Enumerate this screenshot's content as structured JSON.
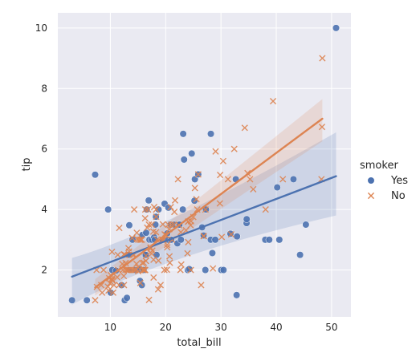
{
  "chart_data": {
    "type": "scatter",
    "xlabel": "total_bill",
    "ylabel": "tip",
    "xlim": [
      0.5,
      53.5
    ],
    "ylim": [
      0.45,
      10.5
    ],
    "xticks": [
      10,
      20,
      30,
      40,
      50
    ],
    "yticks": [
      2,
      4,
      6,
      8,
      10
    ],
    "grid": true,
    "legend": {
      "title": "smoker",
      "placement": "right",
      "entries": [
        {
          "label": "Yes",
          "marker": "circle"
        },
        {
          "label": "No",
          "marker": "x"
        }
      ]
    },
    "series": [
      {
        "name": "Yes",
        "marker": "circle",
        "color": "#4c72b0",
        "points": [
          [
            3.07,
            1.0
          ],
          [
            5.75,
            1.0
          ],
          [
            7.25,
            5.15
          ],
          [
            9.6,
            4.0
          ],
          [
            10.07,
            1.25
          ],
          [
            10.34,
            2.0
          ],
          [
            11.02,
            1.98
          ],
          [
            12.03,
            1.5
          ],
          [
            12.6,
            1.0
          ],
          [
            13.0,
            1.08
          ],
          [
            13.27,
            2.5
          ],
          [
            13.42,
            3.48
          ],
          [
            13.51,
            2.0
          ],
          [
            14.0,
            3.0
          ],
          [
            14.5,
            2.0
          ],
          [
            15.36,
            1.64
          ],
          [
            15.48,
            2.02
          ],
          [
            15.69,
            1.5
          ],
          [
            15.81,
            3.16
          ],
          [
            16.0,
            2.0
          ],
          [
            16.27,
            2.5
          ],
          [
            16.4,
            2.5
          ],
          [
            16.47,
            3.23
          ],
          [
            16.58,
            4.0
          ],
          [
            16.93,
            4.3
          ],
          [
            17.07,
            3.0
          ],
          [
            17.51,
            3.0
          ],
          [
            17.92,
            3.08
          ],
          [
            18.04,
            3.0
          ],
          [
            18.15,
            3.5
          ],
          [
            18.24,
            3.76
          ],
          [
            18.35,
            2.5
          ],
          [
            18.71,
            4.0
          ],
          [
            19.44,
            3.0
          ],
          [
            19.81,
            4.19
          ],
          [
            20.29,
            3.21
          ],
          [
            20.45,
            3.0
          ],
          [
            20.49,
            4.06
          ],
          [
            20.9,
            3.5
          ],
          [
            21.01,
            3.0
          ],
          [
            21.5,
            3.5
          ],
          [
            22.12,
            2.88
          ],
          [
            22.42,
            3.48
          ],
          [
            22.49,
            3.5
          ],
          [
            22.76,
            3.0
          ],
          [
            23.1,
            4.0
          ],
          [
            23.33,
            5.65
          ],
          [
            23.17,
            6.5
          ],
          [
            24.01,
            2.0
          ],
          [
            24.27,
            2.03
          ],
          [
            24.71,
            5.85
          ],
          [
            25.21,
            4.29
          ],
          [
            25.28,
            5.0
          ],
          [
            25.89,
            5.16
          ],
          [
            26.59,
            3.41
          ],
          [
            26.86,
            3.14
          ],
          [
            27.18,
            2.0
          ],
          [
            27.28,
            4.0
          ],
          [
            28.15,
            3.0
          ],
          [
            28.17,
            6.5
          ],
          [
            28.44,
            2.56
          ],
          [
            28.97,
            3.0
          ],
          [
            30.06,
            2.0
          ],
          [
            30.46,
            2.0
          ],
          [
            31.71,
            3.2
          ],
          [
            32.68,
            5.0
          ],
          [
            32.83,
            1.17
          ],
          [
            32.9,
            3.11
          ],
          [
            34.63,
            3.55
          ],
          [
            34.65,
            3.68
          ],
          [
            38.01,
            3.0
          ],
          [
            38.73,
            3.0
          ],
          [
            40.17,
            4.73
          ],
          [
            40.55,
            3.0
          ],
          [
            43.11,
            5.0
          ],
          [
            44.3,
            2.5
          ],
          [
            45.35,
            3.5
          ],
          [
            50.81,
            10.0
          ]
        ]
      },
      {
        "name": "No",
        "marker": "x",
        "color": "#dd8452",
        "points": [
          [
            7.25,
            1.0
          ],
          [
            7.51,
            2.0
          ],
          [
            7.56,
            1.44
          ],
          [
            8.35,
            1.5
          ],
          [
            8.51,
            1.25
          ],
          [
            8.77,
            2.0
          ],
          [
            9.55,
            1.45
          ],
          [
            9.68,
            1.32
          ],
          [
            9.78,
            1.73
          ],
          [
            9.94,
            1.56
          ],
          [
            10.07,
            1.83
          ],
          [
            10.27,
            1.71
          ],
          [
            10.29,
            2.6
          ],
          [
            10.33,
            1.67
          ],
          [
            10.34,
            1.66
          ],
          [
            10.51,
            1.25
          ],
          [
            10.65,
            1.5
          ],
          [
            11.24,
            1.76
          ],
          [
            11.35,
            2.5
          ],
          [
            11.38,
            2.0
          ],
          [
            11.59,
            1.5
          ],
          [
            11.61,
            3.39
          ],
          [
            12.16,
            2.2
          ],
          [
            12.26,
            2.0
          ],
          [
            12.43,
            1.8
          ],
          [
            12.46,
            1.5
          ],
          [
            12.48,
            2.52
          ],
          [
            12.54,
            2.5
          ],
          [
            12.66,
            2.5
          ],
          [
            12.74,
            2.01
          ],
          [
            12.76,
            2.23
          ],
          [
            13.03,
            2.0
          ],
          [
            13.13,
            2.0
          ],
          [
            13.28,
            2.72
          ],
          [
            13.37,
            2.0
          ],
          [
            13.39,
            2.61
          ],
          [
            13.81,
            2.0
          ],
          [
            13.94,
            3.06
          ],
          [
            14.07,
            2.5
          ],
          [
            14.15,
            2.0
          ],
          [
            14.26,
            2.5
          ],
          [
            14.31,
            4.0
          ],
          [
            14.52,
            2.0
          ],
          [
            14.73,
            2.2
          ],
          [
            14.78,
            3.23
          ],
          [
            14.83,
            3.02
          ],
          [
            15.01,
            2.09
          ],
          [
            15.04,
            1.96
          ],
          [
            15.06,
            3.0
          ],
          [
            15.38,
            3.0
          ],
          [
            15.42,
            1.57
          ],
          [
            15.53,
            3.0
          ],
          [
            15.77,
            2.23
          ],
          [
            15.95,
            2.0
          ],
          [
            15.98,
            2.03
          ],
          [
            16.0,
            2.0
          ],
          [
            16.21,
            2.0
          ],
          [
            16.29,
            3.71
          ],
          [
            16.31,
            2.0
          ],
          [
            16.32,
            4.0
          ],
          [
            16.43,
            2.3
          ],
          [
            16.45,
            2.47
          ],
          [
            16.66,
            3.4
          ],
          [
            16.82,
            4.0
          ],
          [
            16.97,
            3.5
          ],
          [
            16.99,
            1.01
          ],
          [
            17.26,
            2.74
          ],
          [
            17.29,
            2.71
          ],
          [
            17.46,
            2.54
          ],
          [
            17.59,
            2.64
          ],
          [
            17.78,
            3.27
          ],
          [
            17.82,
            1.75
          ],
          [
            17.92,
            4.08
          ],
          [
            18.26,
            3.25
          ],
          [
            18.28,
            4.0
          ],
          [
            18.29,
            3.76
          ],
          [
            18.43,
            3.0
          ],
          [
            18.64,
            1.36
          ],
          [
            18.69,
            2.31
          ],
          [
            19.08,
            1.5
          ],
          [
            19.49,
            3.51
          ],
          [
            19.65,
            3.0
          ],
          [
            19.77,
            2.0
          ],
          [
            19.82,
            3.18
          ],
          [
            20.08,
            3.15
          ],
          [
            20.23,
            2.01
          ],
          [
            20.27,
            2.83
          ],
          [
            20.29,
            2.75
          ],
          [
            20.65,
            3.35
          ],
          [
            20.69,
            2.45
          ],
          [
            20.92,
            4.08
          ],
          [
            20.76,
            2.24
          ],
          [
            21.01,
            3.5
          ],
          [
            21.16,
            3.0
          ],
          [
            21.58,
            3.92
          ],
          [
            21.7,
            4.3
          ],
          [
            22.23,
            5.0
          ],
          [
            22.82,
            2.18
          ],
          [
            22.67,
            2.0
          ],
          [
            23.68,
            3.31
          ],
          [
            24.06,
            3.6
          ],
          [
            24.08,
            2.92
          ],
          [
            24.55,
            2.0
          ],
          [
            24.59,
            3.61
          ],
          [
            25.0,
            3.75
          ],
          [
            25.29,
            4.71
          ],
          [
            25.56,
            4.34
          ],
          [
            25.71,
            4.0
          ],
          [
            26.41,
            1.5
          ],
          [
            26.88,
            3.12
          ],
          [
            27.2,
            4.0
          ],
          [
            28.55,
            2.05
          ],
          [
            29.03,
            5.92
          ],
          [
            29.8,
            4.2
          ],
          [
            30.14,
            3.09
          ],
          [
            30.4,
            5.6
          ],
          [
            31.27,
            5.0
          ],
          [
            31.85,
            3.18
          ],
          [
            32.4,
            6.0
          ],
          [
            34.3,
            6.7
          ],
          [
            34.81,
            5.2
          ],
          [
            35.26,
            5.0
          ],
          [
            35.83,
            4.67
          ],
          [
            38.07,
            4.0
          ],
          [
            39.42,
            7.58
          ],
          [
            41.19,
            5.0
          ],
          [
            48.17,
            5.0
          ],
          [
            48.27,
            6.73
          ],
          [
            48.33,
            9.0
          ],
          [
            29.85,
            5.14
          ],
          [
            24.52,
            3.48
          ],
          [
            20.49,
            3.5
          ],
          [
            17.81,
            2.34
          ],
          [
            22.75,
            3.25
          ],
          [
            19.44,
            3.0
          ],
          [
            21.5,
            3.5
          ],
          [
            23.95,
            2.55
          ],
          [
            26.88,
            3.12
          ],
          [
            14.48,
            2.0
          ],
          [
            22.42,
            3.48
          ],
          [
            25.89,
            5.16
          ],
          [
            17.47,
            3.5
          ],
          [
            24.06,
            3.6
          ],
          [
            16.04,
            2.24
          ],
          [
            15.69,
            3.0
          ]
        ]
      }
    ],
    "regression": [
      {
        "name": "Yes",
        "color": "#4c72b0",
        "x": [
          3.07,
          50.81
        ],
        "y": [
          1.78,
          5.1
        ],
        "ci_lower": [
          0.85,
          3.8
        ],
        "ci_upper": [
          2.4,
          6.55
        ],
        "ci_mid_x": 18.6,
        "ci_mid": [
          2.6,
          3.05
        ]
      },
      {
        "name": "No",
        "color": "#dd8452",
        "x": [
          7.25,
          48.33
        ],
        "y": [
          1.42,
          7.0
        ],
        "ci_lower": [
          1.15,
          6.25
        ],
        "ci_upper": [
          1.7,
          7.65
        ],
        "ci_mid_x": 17.5,
        "ci_mid": [
          2.68,
          2.95
        ]
      }
    ]
  }
}
